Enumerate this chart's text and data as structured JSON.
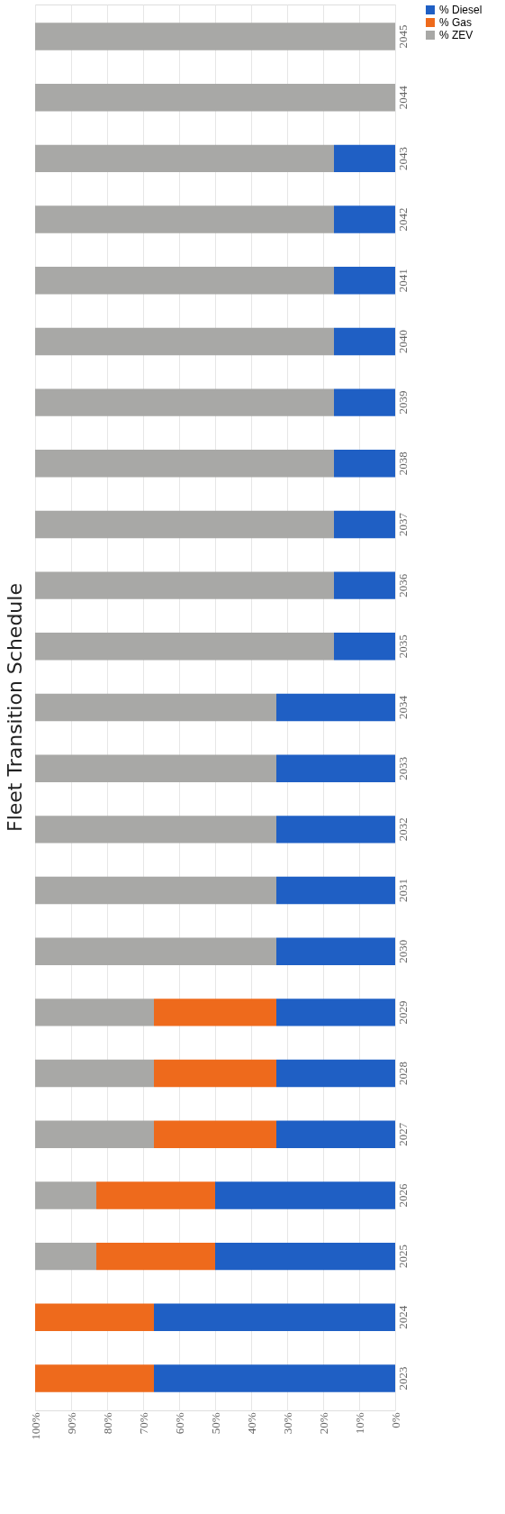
{
  "chart_data": {
    "type": "bar",
    "title": "Fleet Transition Schedule",
    "orientation": "horizontal",
    "stacked": true,
    "categories": [
      "2045",
      "2044",
      "2043",
      "2042",
      "2041",
      "2040",
      "2039",
      "2038",
      "2037",
      "2036",
      "2035",
      "2034",
      "2033",
      "2032",
      "2031",
      "2030",
      "2029",
      "2028",
      "2027",
      "2026",
      "2025",
      "2024",
      "2023"
    ],
    "series": [
      {
        "name": "% Diesel",
        "color": "#1f5fc4",
        "values": [
          0,
          0,
          17,
          17,
          17,
          17,
          17,
          17,
          17,
          17,
          17,
          33,
          33,
          33,
          33,
          33,
          33,
          33,
          33,
          50,
          50,
          67,
          67
        ]
      },
      {
        "name": "% Gas",
        "color": "#ee6a1c",
        "values": [
          0,
          0,
          0,
          0,
          0,
          0,
          0,
          0,
          0,
          0,
          0,
          0,
          0,
          0,
          0,
          0,
          34,
          34,
          34,
          33,
          33,
          33,
          33
        ]
      },
      {
        "name": "% ZEV",
        "color": "#a8a8a6",
        "values": [
          100,
          100,
          83,
          83,
          83,
          83,
          83,
          83,
          83,
          83,
          83,
          67,
          67,
          67,
          67,
          67,
          33,
          33,
          33,
          17,
          17,
          0,
          0
        ]
      }
    ],
    "xlim": [
      100,
      0
    ],
    "xticks": [
      {
        "value": 100,
        "label": "100%"
      },
      {
        "value": 90,
        "label": "90%"
      },
      {
        "value": 80,
        "label": "80%"
      },
      {
        "value": 70,
        "label": "70%"
      },
      {
        "value": 60,
        "label": "60%"
      },
      {
        "value": 50,
        "label": "50%"
      },
      {
        "value": 40,
        "label": "40%"
      },
      {
        "value": 30,
        "label": "30%"
      },
      {
        "value": 20,
        "label": "20%"
      },
      {
        "value": 10,
        "label": "10%"
      },
      {
        "value": 0,
        "label": "0%"
      }
    ],
    "grid": "x",
    "legend": "right"
  }
}
